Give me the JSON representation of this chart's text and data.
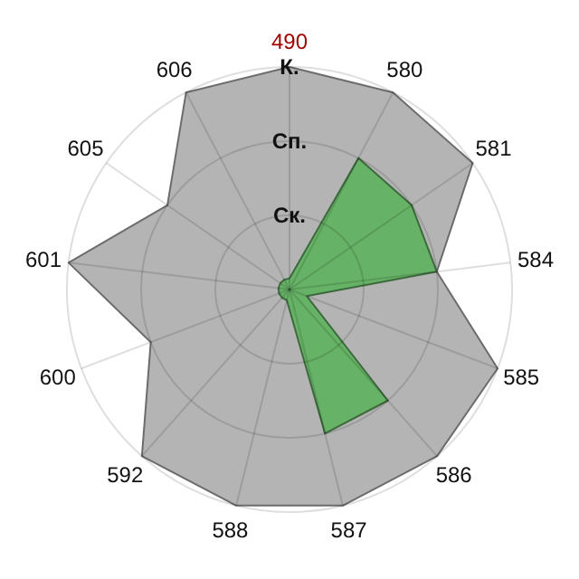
{
  "chart_data": {
    "type": "radar",
    "categories": [
      "490",
      "580",
      "581",
      "584",
      "585",
      "586",
      "587",
      "588",
      "592",
      "600",
      "601",
      "605",
      "606"
    ],
    "series": [
      {
        "color": "#b4b4b4",
        "values": [
          3,
          3,
          3,
          2,
          3,
          3,
          3,
          3,
          3,
          2,
          3,
          2,
          3
        ]
      },
      {
        "color": "#66b266",
        "values": [
          0.15,
          2,
          2,
          2,
          0.25,
          2,
          2,
          0.15,
          0.15,
          0.15,
          0.15,
          0.15,
          0.15
        ]
      }
    ],
    "ylim": [
      0,
      3
    ],
    "yticks": [
      {
        "value": 1,
        "label": "Ск."
      },
      {
        "value": 2,
        "label": "Сп."
      },
      {
        "value": 3,
        "label": "К."
      }
    ],
    "grid": true
  }
}
